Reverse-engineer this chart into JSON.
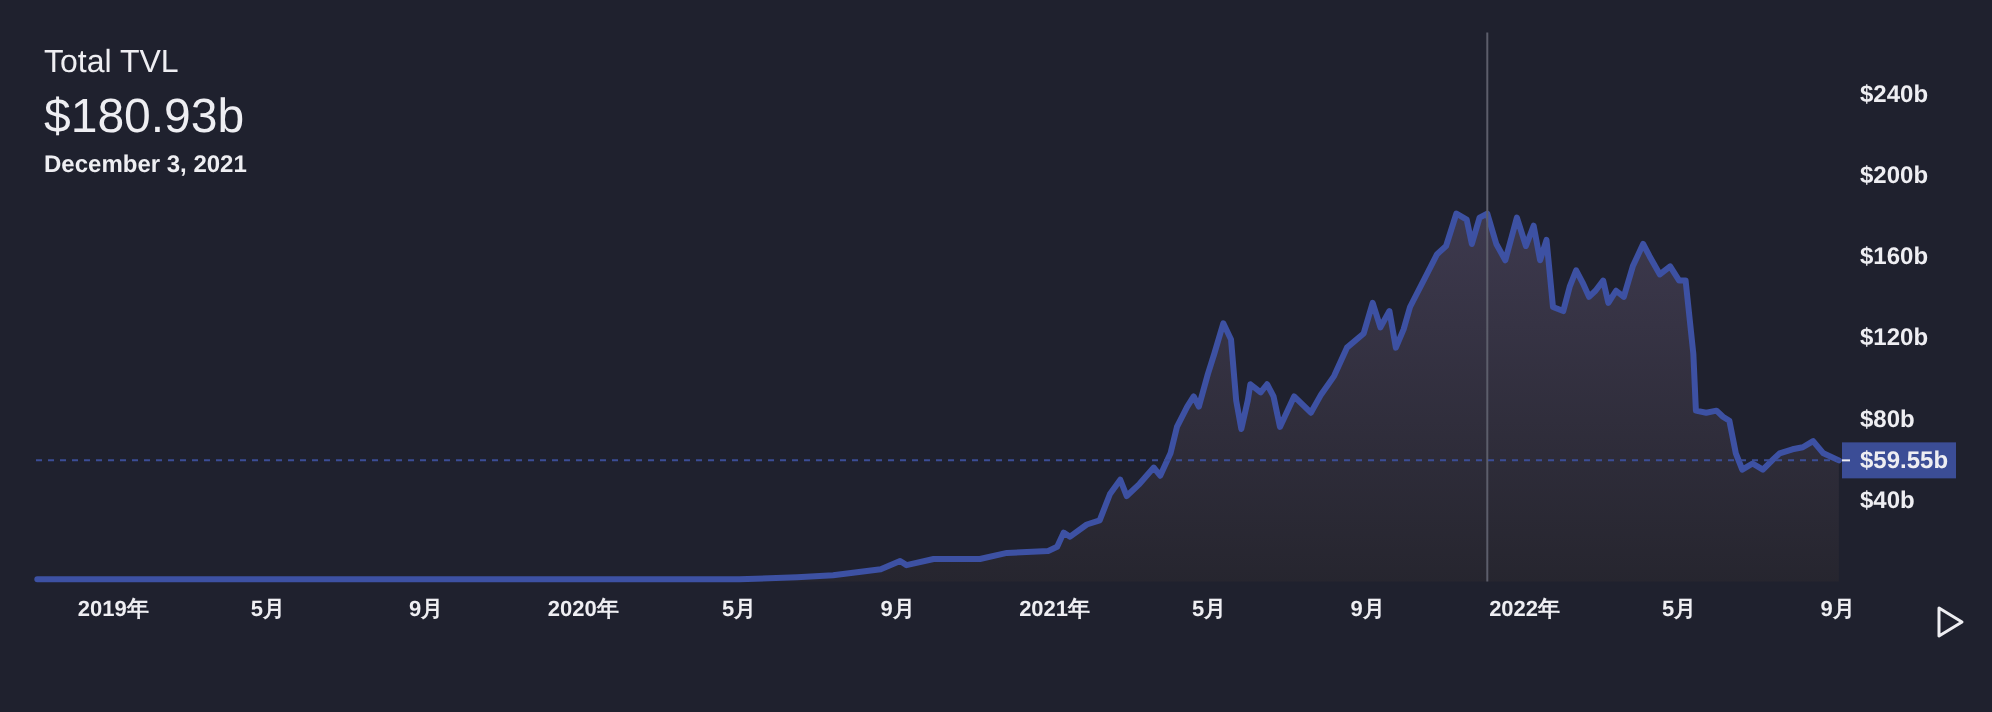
{
  "chart_data": {
    "type": "area",
    "title": "Total TVL",
    "subtitle": "$180.93b",
    "annotations": [
      "December 3, 2021"
    ],
    "color": "#3d51a3",
    "x": [
      "2018-11-03",
      "2019-02-01",
      "2019-05-01",
      "2019-08-01",
      "2019-11-01",
      "2020-02-15",
      "2020-03-15",
      "2020-05-01",
      "2020-06-15",
      "2020-07-13",
      "2020-08-19",
      "2020-09-03",
      "2020-09-08",
      "2020-09-29",
      "2020-11-04",
      "2020-11-25",
      "2020-12-27",
      "2021-01-03",
      "2021-01-08",
      "2021-01-13",
      "2021-01-26",
      "2021-02-05",
      "2021-02-13",
      "2021-02-21",
      "2021-02-26",
      "2021-03-08",
      "2021-03-19",
      "2021-03-24",
      "2021-04-01",
      "2021-04-06",
      "2021-04-14",
      "2021-04-19",
      "2021-04-23",
      "2021-04-30",
      "2021-05-05",
      "2021-05-12",
      "2021-05-18",
      "2021-05-22",
      "2021-05-26",
      "2021-05-31",
      "2021-06-02",
      "2021-06-10",
      "2021-06-15",
      "2021-06-20",
      "2021-06-25",
      "2021-07-06",
      "2021-07-19",
      "2021-07-27",
      "2021-08-06",
      "2021-08-16",
      "2021-08-29",
      "2021-09-05",
      "2021-09-11",
      "2021-09-18",
      "2021-09-23",
      "2021-09-29",
      "2021-10-04",
      "2021-10-17",
      "2021-10-25",
      "2021-11-01",
      "2021-11-09",
      "2021-11-17",
      "2021-11-21",
      "2021-11-27",
      "2021-12-03",
      "2021-12-10",
      "2021-12-17",
      "2021-12-26",
      "2022-01-02",
      "2022-01-08",
      "2022-01-13",
      "2022-01-18",
      "2022-01-23",
      "2022-01-31",
      "2022-02-05",
      "2022-02-10",
      "2022-02-15",
      "2022-02-20",
      "2022-02-25",
      "2022-03-03",
      "2022-03-07",
      "2022-03-13",
      "2022-03-19",
      "2022-03-26",
      "2022-04-03",
      "2022-04-08",
      "2022-04-16",
      "2022-04-24",
      "2022-05-01",
      "2022-05-06",
      "2022-05-12",
      "2022-05-14",
      "2022-05-22",
      "2022-05-30",
      "2022-06-04",
      "2022-06-09",
      "2022-06-14",
      "2022-06-19",
      "2022-06-27",
      "2022-07-05",
      "2022-07-13",
      "2022-07-18",
      "2022-07-28",
      "2022-08-05",
      "2022-08-13",
      "2022-08-21",
      "2022-09-02"
    ],
    "values": [
      1,
      1,
      1,
      1,
      1,
      1,
      1,
      1,
      2,
      3,
      6,
      10,
      8,
      11,
      11,
      14,
      15,
      17,
      24,
      22,
      28,
      30,
      43,
      50,
      42,
      48,
      56,
      52,
      63,
      76,
      86,
      91,
      86,
      102,
      112,
      127,
      119,
      89,
      75,
      89,
      97,
      93,
      97,
      91,
      76,
      91,
      83,
      92,
      101,
      115,
      122,
      137,
      125,
      133,
      115,
      124,
      135,
      151,
      161,
      165,
      181,
      178,
      166,
      179,
      180.93,
      166,
      158,
      179,
      165,
      175,
      158,
      168,
      135,
      133,
      145,
      153,
      147,
      140,
      143,
      148,
      137,
      143,
      140,
      155,
      166,
      160,
      151,
      155,
      148,
      148,
      112,
      84,
      83,
      84,
      81,
      79,
      63,
      55,
      58,
      55,
      60,
      63,
      65,
      66,
      69,
      63,
      59.55
    ],
    "xlim": [
      "2018-11-02",
      "2022-09-06"
    ],
    "xticks": [
      {
        "value": "2019-01-01",
        "label": "2019年"
      },
      {
        "value": "2019-05-01",
        "label": "5月"
      },
      {
        "value": "2019-09-01",
        "label": "9月"
      },
      {
        "value": "2020-01-01",
        "label": "2020年"
      },
      {
        "value": "2020-05-01",
        "label": "5月"
      },
      {
        "value": "2020-09-01",
        "label": "9月"
      },
      {
        "value": "2021-01-01",
        "label": "2021年"
      },
      {
        "value": "2021-05-01",
        "label": "5月"
      },
      {
        "value": "2021-09-01",
        "label": "9月"
      },
      {
        "value": "2022-01-01",
        "label": "2022年"
      },
      {
        "value": "2022-05-01",
        "label": "5月"
      },
      {
        "value": "2022-09-01",
        "label": "9月"
      }
    ],
    "ylim": [
      0,
      270
    ],
    "yticks": [
      {
        "value": 40,
        "label": "$40b"
      },
      {
        "value": 80,
        "label": "$80b"
      },
      {
        "value": 120,
        "label": "$120b"
      },
      {
        "value": 160,
        "label": "$160b"
      },
      {
        "value": 200,
        "label": "$200b"
      },
      {
        "value": 240,
        "label": "$240b"
      }
    ],
    "ref_lines": [
      {
        "axis": "x",
        "value": "2021-12-03",
        "color": "#5c5e6b"
      },
      {
        "axis": "y",
        "value": 59.55,
        "label": "$59.55b",
        "color": "#3b4d96",
        "line_style": "dashed"
      }
    ]
  }
}
